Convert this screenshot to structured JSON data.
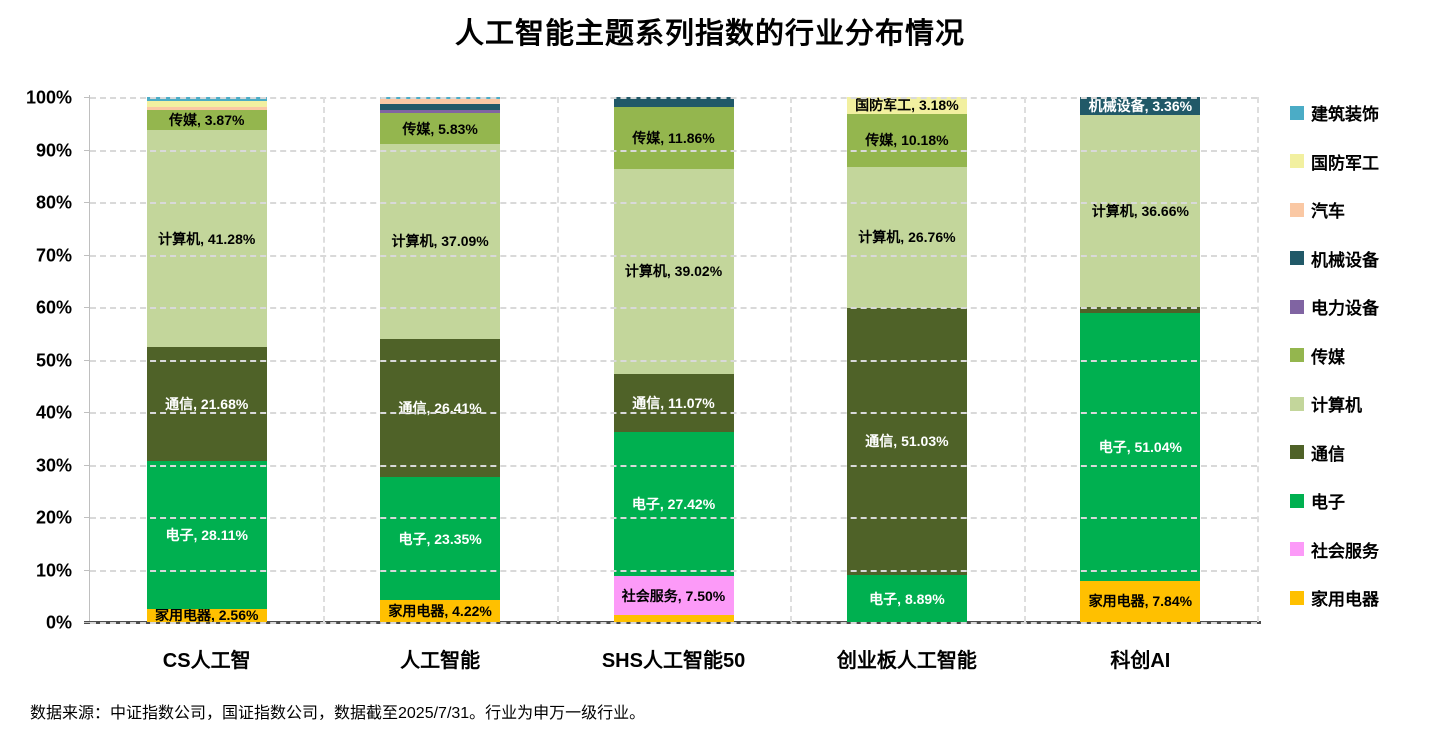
{
  "title": "人工智能主题系列指数的行业分布情况",
  "footer": {
    "text": "数据来源：中证指数公司，国证指数公司，数据截至2025/7/31。行业为申万一级行业。"
  },
  "chart_data": {
    "type": "bar",
    "subtype": "100-percent-stacked-column",
    "title": "人工智能主题系列指数的行业分布情况",
    "categories": [
      "CS人工智",
      "人工智能",
      "SHS人工智能50",
      "创业板人工智能",
      "科创AI"
    ],
    "label_format": "{industry}, {value}%",
    "y_axis": {
      "min": 0,
      "max": 100,
      "step": 10,
      "tick_labels": [
        "0%",
        "10%",
        "20%",
        "30%",
        "40%",
        "50%",
        "60%",
        "70%",
        "80%",
        "90%",
        "100%"
      ]
    },
    "grid": {
      "horizontal": "dashed",
      "vertical_category_separators": "dashed"
    },
    "series_bottom_to_top": [
      {
        "name": "家用电器",
        "color": "#FFC000",
        "label_color": "#000000",
        "values": [
          2.56,
          4.22,
          1.3,
          0,
          7.84
        ],
        "show_label": [
          true,
          true,
          false,
          false,
          true
        ],
        "estimated": [
          false,
          false,
          true,
          false,
          false
        ]
      },
      {
        "name": "社会服务",
        "color": "#FC9AF8",
        "label_color": "#000000",
        "values": [
          0,
          0,
          7.5,
          0,
          0
        ],
        "show_label": [
          false,
          false,
          true,
          false,
          false
        ],
        "estimated": [
          false,
          false,
          false,
          false,
          false
        ]
      },
      {
        "name": "电子",
        "color": "#00B050",
        "label_color": "#FFFFFF",
        "values": [
          28.11,
          23.35,
          27.42,
          8.89,
          51.04
        ],
        "show_label": [
          true,
          true,
          true,
          true,
          true
        ],
        "estimated": [
          false,
          false,
          false,
          false,
          false
        ]
      },
      {
        "name": "通信",
        "color": "#4F6228",
        "label_color": "#FFFFFF",
        "values": [
          21.68,
          26.41,
          11.07,
          51.03,
          1.1
        ],
        "show_label": [
          true,
          true,
          true,
          true,
          false
        ],
        "estimated": [
          false,
          false,
          false,
          false,
          true
        ]
      },
      {
        "name": "计算机",
        "color": "#C3D69B",
        "label_color": "#000000",
        "values": [
          41.28,
          37.09,
          39.02,
          26.76,
          36.66
        ],
        "show_label": [
          true,
          true,
          true,
          true,
          true
        ],
        "estimated": [
          false,
          false,
          false,
          false,
          false
        ]
      },
      {
        "name": "传媒",
        "color": "#94B64E",
        "label_color": "#000000",
        "values": [
          3.87,
          5.83,
          11.86,
          10.18,
          0
        ],
        "show_label": [
          true,
          true,
          true,
          true,
          false
        ],
        "estimated": [
          false,
          false,
          false,
          false,
          false
        ]
      },
      {
        "name": "电力设备",
        "color": "#8064A2",
        "label_color": "#FFFFFF",
        "values": [
          0,
          0.7,
          0,
          0,
          0
        ],
        "show_label": [
          false,
          false,
          false,
          false,
          false
        ],
        "estimated": [
          false,
          true,
          false,
          false,
          false
        ]
      },
      {
        "name": "机械设备",
        "color": "#215968",
        "label_color": "#FFFFFF",
        "values": [
          0,
          1.1,
          1.83,
          0,
          3.36
        ],
        "show_label": [
          false,
          false,
          false,
          false,
          true
        ],
        "estimated": [
          false,
          true,
          true,
          false,
          false
        ]
      },
      {
        "name": "汽车",
        "color": "#FAC8A4",
        "label_color": "#000000",
        "values": [
          0.6,
          0.9,
          0,
          0,
          0
        ],
        "show_label": [
          false,
          false,
          false,
          false,
          false
        ],
        "estimated": [
          true,
          true,
          false,
          false,
          false
        ]
      },
      {
        "name": "国防军工",
        "color": "#F2F0A0",
        "label_color": "#000000",
        "values": [
          1.1,
          0,
          0,
          3.18,
          0
        ],
        "show_label": [
          false,
          false,
          false,
          true,
          false
        ],
        "estimated": [
          true,
          false,
          false,
          false,
          false
        ]
      },
      {
        "name": "建筑装饰",
        "color": "#4BACC6",
        "label_color": "#000000",
        "values": [
          0.8,
          0.4,
          0,
          0,
          0
        ],
        "show_label": [
          false,
          false,
          false,
          false,
          false
        ],
        "estimated": [
          true,
          true,
          false,
          false,
          false
        ]
      }
    ],
    "legend": {
      "position": "right",
      "items_top_to_bottom": [
        {
          "label": "建筑装饰",
          "color": "#4BACC6"
        },
        {
          "label": "国防军工",
          "color": "#F2F0A0"
        },
        {
          "label": "汽车",
          "color": "#FAC8A4"
        },
        {
          "label": "机械设备",
          "color": "#215968"
        },
        {
          "label": "电力设备",
          "color": "#8064A2"
        },
        {
          "label": "传媒",
          "color": "#94B64E"
        },
        {
          "label": "计算机",
          "color": "#C3D69B"
        },
        {
          "label": "通信",
          "color": "#4F6228"
        },
        {
          "label": "电子",
          "color": "#00B050"
        },
        {
          "label": "社会服务",
          "color": "#FC9AF8"
        },
        {
          "label": "家用电器",
          "color": "#FFC000"
        }
      ]
    }
  }
}
